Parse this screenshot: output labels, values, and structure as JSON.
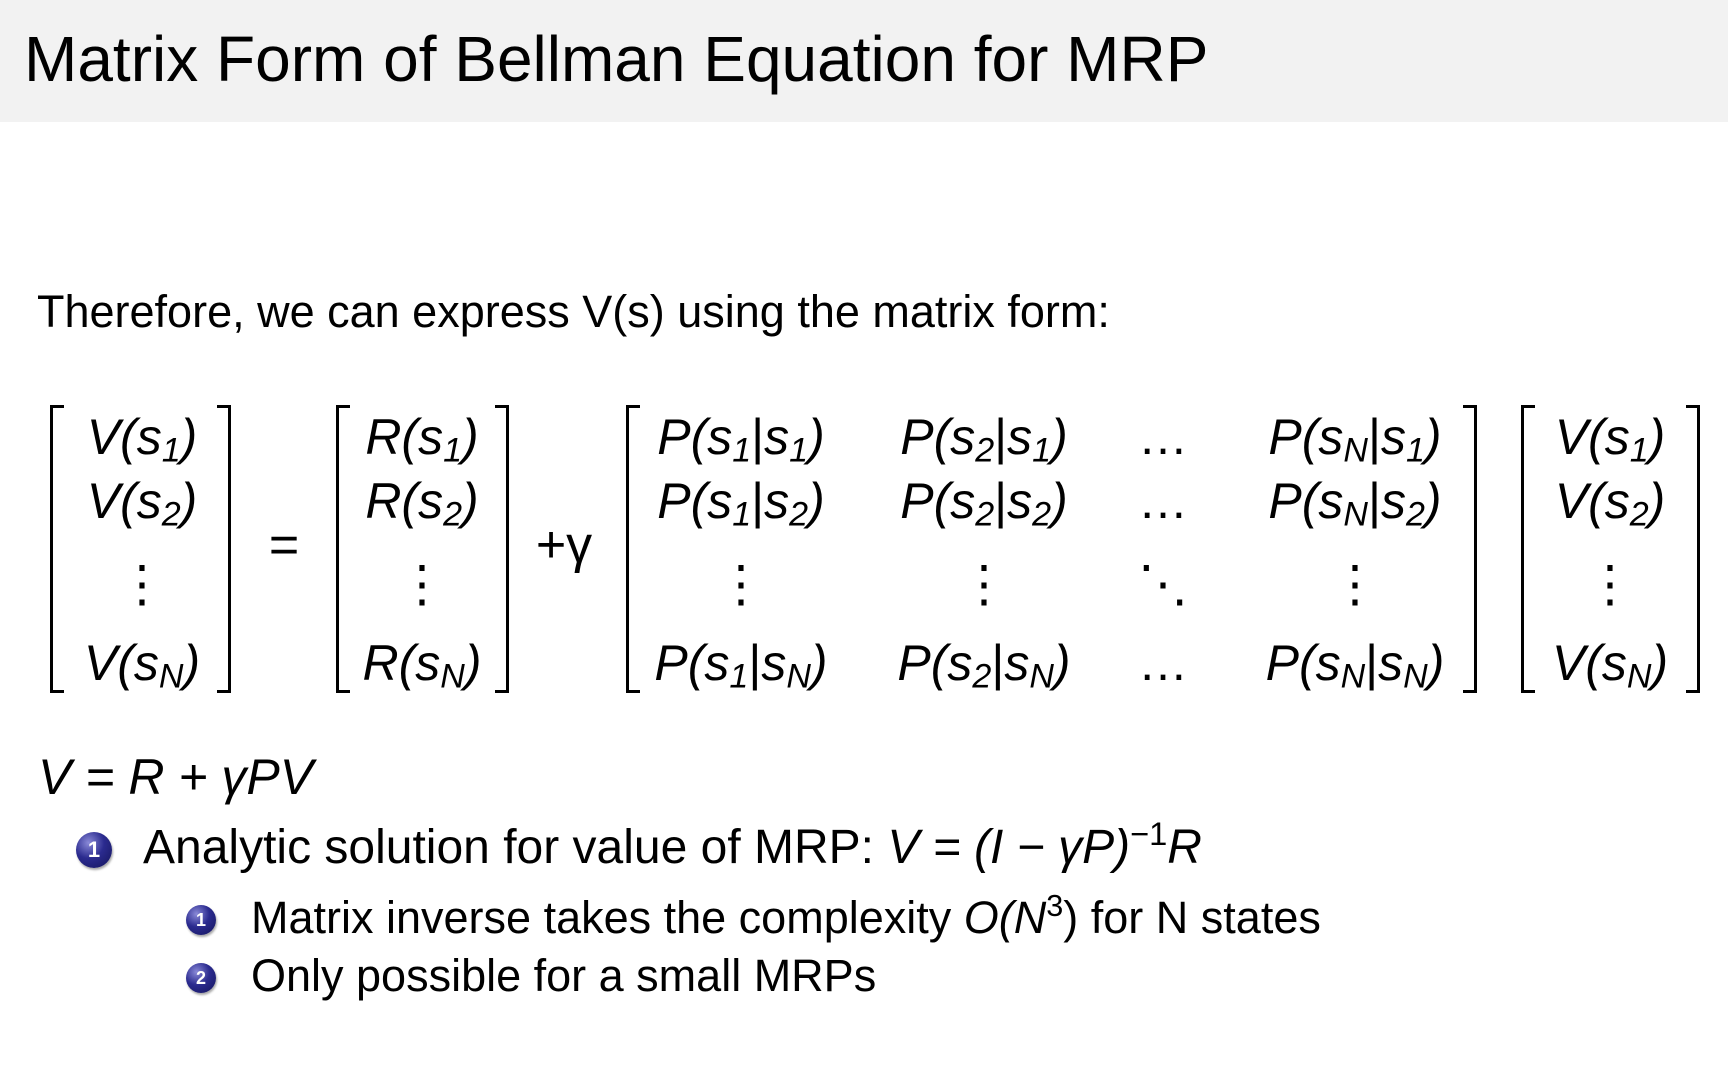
{
  "title": "Matrix Form of Bellman Equation for MRP",
  "intro": "Therefore, we can express V(s) using the matrix form:",
  "equation": {
    "lhs_vector": [
      {
        "f": "V",
        "s": "1"
      },
      {
        "f": "V",
        "s": "2"
      },
      {
        "dots": "⋮"
      },
      {
        "f": "V",
        "s": "N"
      }
    ],
    "equals": "=",
    "reward_vector": [
      {
        "f": "R",
        "s": "1"
      },
      {
        "f": "R",
        "s": "2"
      },
      {
        "dots": "⋮"
      },
      {
        "f": "R",
        "s": "N"
      }
    ],
    "plus_gamma": "+γ",
    "transition_matrix": [
      [
        {
          "f": "P",
          "a": "1",
          "b": "1"
        },
        {
          "f": "P",
          "a": "2",
          "b": "1"
        },
        {
          "dots": "…"
        },
        {
          "f": "P",
          "a": "N",
          "b": "1"
        }
      ],
      [
        {
          "f": "P",
          "a": "1",
          "b": "2"
        },
        {
          "f": "P",
          "a": "2",
          "b": "2"
        },
        {
          "dots": "…"
        },
        {
          "f": "P",
          "a": "N",
          "b": "2"
        }
      ],
      [
        {
          "dots": "⋮"
        },
        {
          "dots": "⋮"
        },
        {
          "dots": "⋱"
        },
        {
          "dots": "⋮"
        }
      ],
      [
        {
          "f": "P",
          "a": "1",
          "b": "N"
        },
        {
          "f": "P",
          "a": "2",
          "b": "N"
        },
        {
          "dots": "…"
        },
        {
          "f": "P",
          "a": "N",
          "b": "N"
        }
      ]
    ],
    "rhs_vector": [
      {
        "f": "V",
        "s": "1"
      },
      {
        "f": "V",
        "s": "2"
      },
      {
        "dots": "⋮"
      },
      {
        "f": "V",
        "s": "N"
      }
    ]
  },
  "compact_form": "V = R + γPV",
  "bullets": [
    {
      "number": "1",
      "text": "Analytic solution for value of MRP: ",
      "math": "V = (I − γP)",
      "sup": "−1",
      "math_tail": "R"
    },
    {
      "number": "1",
      "text_before": "Matrix inverse takes the complexity ",
      "math": "O(N",
      "sup": "3",
      "math_tail": ")",
      "text_after": " for N states"
    },
    {
      "number": "2",
      "text": "Only possible for a small MRPs"
    }
  ],
  "colors": {
    "title_bar": "#f2f2f2",
    "bullet": "#2b2b8f"
  }
}
